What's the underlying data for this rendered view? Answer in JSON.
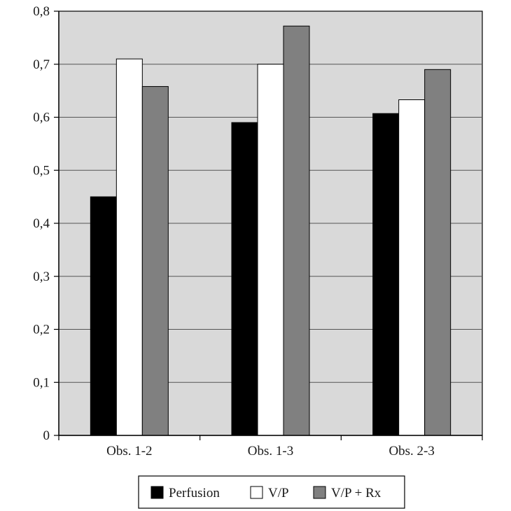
{
  "chart_data": {
    "type": "bar",
    "categories": [
      "Obs. 1-2",
      "Obs. 1-3",
      "Obs. 2-3"
    ],
    "series": [
      {
        "name": "Perfusion",
        "values": [
          0.45,
          0.59,
          0.607
        ],
        "color": "#000000"
      },
      {
        "name": "V/P",
        "values": [
          0.71,
          0.7,
          0.633
        ],
        "color": "#ffffff"
      },
      {
        "name": "V/P + Rx",
        "values": [
          0.658,
          0.772,
          0.69
        ],
        "color": "#808080"
      }
    ],
    "ylim": [
      0,
      0.8
    ],
    "yticks": [
      {
        "value": 0,
        "label": "0"
      },
      {
        "value": 0.1,
        "label": "0,1"
      },
      {
        "value": 0.2,
        "label": "0,2"
      },
      {
        "value": 0.3,
        "label": "0,3"
      },
      {
        "value": 0.4,
        "label": "0,4"
      },
      {
        "value": 0.5,
        "label": "0,5"
      },
      {
        "value": 0.6,
        "label": "0,6"
      },
      {
        "value": 0.7,
        "label": "0,7"
      },
      {
        "value": 0.8,
        "label": "0,8"
      }
    ],
    "grid": true,
    "legend_position": "bottom",
    "plot_background": "#d9d9d9",
    "title": "",
    "xlabel": "",
    "ylabel": ""
  }
}
